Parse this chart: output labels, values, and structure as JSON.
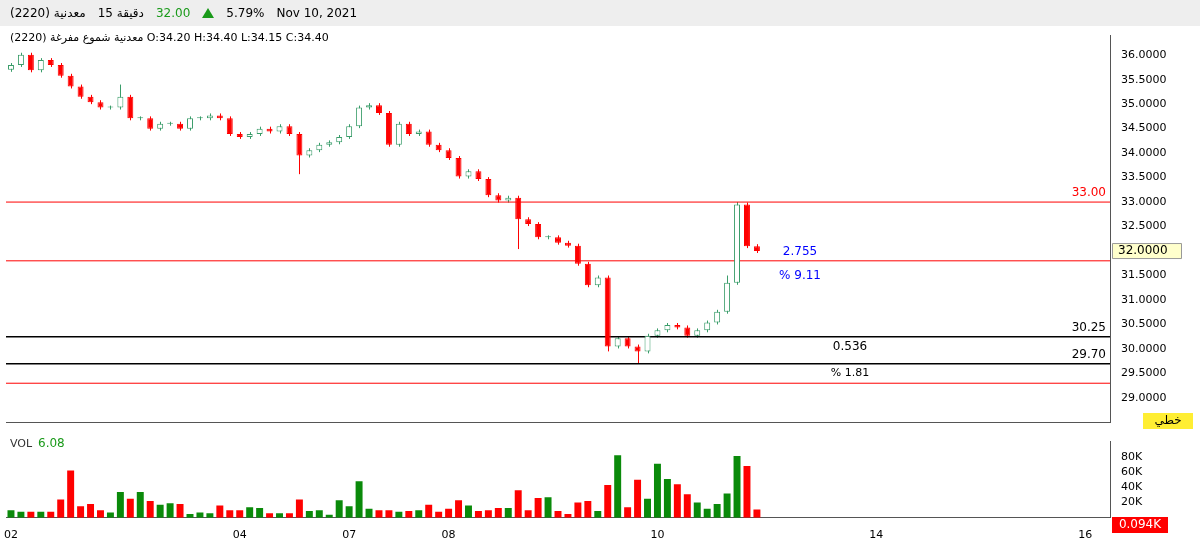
{
  "chart_data": [
    {
      "type": "candlestick",
      "title": "معدنية (2220)",
      "subtitle": "معدنية شموع مفرغة (2220) O:34.20 H:34.40 L:34.15 C:34.40",
      "categories": [
        "02",
        null,
        null,
        null,
        null,
        null,
        null,
        null,
        null,
        null,
        null,
        null,
        null,
        null,
        null,
        null,
        null,
        null,
        null,
        null,
        null,
        null,
        null,
        "04",
        null,
        null,
        null,
        null,
        null,
        null,
        null,
        null,
        null,
        null,
        "07",
        null,
        null,
        null,
        null,
        null,
        null,
        null,
        null,
        null,
        "08",
        null,
        null,
        null,
        null,
        null,
        null,
        null,
        null,
        null,
        null,
        null,
        null,
        null,
        null,
        null,
        null,
        null,
        null,
        null,
        null,
        "10",
        null,
        null,
        null,
        null,
        null,
        null,
        null,
        null,
        null,
        null,
        null,
        null,
        null,
        null,
        null,
        null,
        null,
        null,
        null,
        null,
        null,
        "14",
        null,
        null,
        null,
        null,
        null,
        null,
        null,
        null,
        null,
        null,
        null,
        null,
        null,
        null,
        null,
        null,
        null,
        null,
        null,
        null,
        "16",
        null,
        null
      ],
      "ohlc": [
        [
          35.7,
          35.84,
          35.66,
          35.8
        ],
        [
          35.8,
          36.05,
          35.76,
          36.01
        ],
        [
          36.01,
          36.05,
          35.65,
          35.69
        ],
        [
          35.69,
          35.94,
          35.65,
          35.9
        ],
        [
          35.9,
          35.94,
          35.76,
          35.8
        ],
        [
          35.8,
          35.84,
          35.54,
          35.58
        ],
        [
          35.58,
          35.62,
          35.32,
          35.36
        ],
        [
          35.36,
          35.4,
          35.11,
          35.15
        ],
        [
          35.15,
          35.19,
          35.0,
          35.04
        ],
        [
          35.04,
          35.08,
          34.89,
          34.93
        ],
        [
          34.93,
          34.97,
          34.89,
          34.93
        ],
        [
          34.93,
          35.4,
          34.89,
          35.15
        ],
        [
          35.15,
          35.19,
          34.67,
          34.71
        ],
        [
          34.71,
          34.75,
          34.67,
          34.71
        ],
        [
          34.71,
          34.75,
          34.46,
          34.5
        ],
        [
          34.5,
          34.64,
          34.46,
          34.6
        ],
        [
          34.6,
          34.64,
          34.56,
          34.6
        ],
        [
          34.6,
          34.64,
          34.46,
          34.5
        ],
        [
          34.5,
          34.75,
          34.46,
          34.71
        ],
        [
          34.71,
          34.75,
          34.67,
          34.71
        ],
        [
          34.71,
          34.81,
          34.67,
          34.77
        ],
        [
          34.77,
          34.81,
          34.67,
          34.71
        ],
        [
          34.71,
          34.75,
          34.35,
          34.39
        ],
        [
          34.39,
          34.43,
          34.29,
          34.33
        ],
        [
          34.33,
          34.43,
          34.29,
          34.39
        ],
        [
          34.39,
          34.54,
          34.35,
          34.5
        ],
        [
          34.5,
          34.54,
          34.4,
          34.44
        ],
        [
          34.44,
          34.59,
          34.4,
          34.55
        ],
        [
          34.55,
          34.59,
          34.35,
          34.39
        ],
        [
          34.39,
          34.43,
          33.57,
          33.95
        ],
        [
          33.95,
          34.1,
          33.91,
          34.06
        ],
        [
          34.06,
          34.21,
          34.02,
          34.17
        ],
        [
          34.17,
          34.26,
          34.13,
          34.22
        ],
        [
          34.22,
          34.37,
          34.18,
          34.33
        ],
        [
          34.33,
          34.59,
          34.29,
          34.55
        ],
        [
          34.55,
          34.97,
          34.51,
          34.93
        ],
        [
          34.93,
          35.02,
          34.89,
          34.98
        ],
        [
          34.98,
          35.02,
          34.78,
          34.82
        ],
        [
          34.82,
          34.86,
          34.13,
          34.17
        ],
        [
          34.17,
          34.64,
          34.13,
          34.6
        ],
        [
          34.6,
          34.64,
          34.35,
          34.39
        ],
        [
          34.39,
          34.48,
          34.35,
          34.44
        ],
        [
          34.44,
          34.48,
          34.13,
          34.17
        ],
        [
          34.17,
          34.21,
          34.02,
          34.06
        ],
        [
          34.06,
          34.1,
          33.86,
          33.9
        ],
        [
          33.9,
          33.94,
          33.48,
          33.52
        ],
        [
          33.52,
          33.67,
          33.48,
          33.63
        ],
        [
          33.63,
          33.67,
          33.43,
          33.47
        ],
        [
          33.47,
          33.51,
          33.1,
          33.14
        ],
        [
          33.14,
          33.18,
          32.99,
          33.03
        ],
        [
          33.03,
          33.13,
          32.99,
          33.09
        ],
        [
          33.09,
          33.13,
          32.04,
          32.65
        ],
        [
          32.65,
          32.69,
          32.51,
          32.55
        ],
        [
          32.55,
          32.59,
          32.24,
          32.28
        ],
        [
          32.28,
          32.32,
          32.24,
          32.28
        ],
        [
          32.28,
          32.32,
          32.13,
          32.17
        ],
        [
          32.17,
          32.21,
          32.07,
          32.11
        ],
        [
          32.11,
          32.15,
          31.7,
          31.74
        ],
        [
          31.74,
          31.78,
          31.26,
          31.3
        ],
        [
          31.3,
          31.5,
          31.26,
          31.46
        ],
        [
          31.46,
          31.5,
          29.95,
          30.05
        ],
        [
          30.05,
          30.26,
          30.01,
          30.22
        ],
        [
          30.22,
          30.26,
          30.01,
          30.05
        ],
        [
          30.05,
          30.09,
          29.7,
          29.95
        ],
        [
          29.95,
          30.31,
          29.91,
          30.27
        ],
        [
          30.27,
          30.42,
          30.23,
          30.38
        ],
        [
          30.38,
          30.53,
          30.34,
          30.49
        ],
        [
          30.49,
          30.53,
          30.4,
          30.44
        ],
        [
          30.44,
          30.48,
          30.23,
          30.27
        ],
        [
          30.27,
          30.42,
          30.23,
          30.38
        ],
        [
          30.38,
          30.58,
          30.34,
          30.54
        ],
        [
          30.54,
          30.8,
          30.5,
          30.76
        ],
        [
          30.76,
          31.5,
          30.72,
          31.35
        ],
        [
          31.35,
          33.0,
          31.31,
          32.95
        ],
        [
          32.95,
          32.99,
          32.06,
          32.1
        ],
        [
          32.1,
          32.14,
          31.96,
          32.0
        ],
        null,
        null,
        null,
        null,
        null,
        null,
        null,
        null,
        null,
        null,
        null,
        null,
        null,
        null,
        null,
        null,
        null,
        null,
        null,
        null,
        null,
        null,
        null,
        null,
        null,
        null,
        null,
        null,
        null,
        null,
        null,
        null,
        null,
        null,
        null
      ],
      "colors": [
        "#3a9d6a",
        "#3a9d6a",
        "#ff0000",
        "#3a9d6a",
        "#ff0000",
        "#ff0000",
        "#ff0000",
        "#ff0000",
        "#ff0000",
        "#ff0000",
        "#3a9d6a",
        "#3a9d6a",
        "#ff0000",
        "#3a9d6a",
        "#ff0000",
        "#3a9d6a",
        "#3a9d6a",
        "#ff0000",
        "#3a9d6a",
        "#3a9d6a",
        "#3a9d6a",
        "#ff0000",
        "#ff0000",
        "#ff0000",
        "#3a9d6a",
        "#3a9d6a",
        "#ff0000",
        "#3a9d6a",
        "#ff0000",
        "#ff0000",
        "#3a9d6a",
        "#3a9d6a",
        "#3a9d6a",
        "#3a9d6a",
        "#3a9d6a",
        "#3a9d6a",
        "#3a9d6a",
        "#ff0000",
        "#ff0000",
        "#3a9d6a",
        "#ff0000",
        "#3a9d6a",
        "#ff0000",
        "#ff0000",
        "#ff0000",
        "#ff0000",
        "#3a9d6a",
        "#ff0000",
        "#ff0000",
        "#ff0000",
        "#3a9d6a",
        "#ff0000",
        "#ff0000",
        "#ff0000",
        "#3a9d6a",
        "#ff0000",
        "#ff0000",
        "#ff0000",
        "#ff0000",
        "#3a9d6a",
        "#ff0000",
        "#3a9d6a",
        "#ff0000",
        "#ff0000",
        "#3a9d6a",
        "#3a9d6a",
        "#3a9d6a",
        "#ff0000",
        "#ff0000",
        "#3a9d6a",
        "#3a9d6a",
        "#3a9d6a",
        "#3a9d6a",
        "#3a9d6a",
        "#ff0000",
        "#ff0000",
        null,
        null,
        null,
        null,
        null,
        null,
        null,
        null,
        null,
        null,
        null,
        null,
        null,
        null,
        null,
        null,
        null,
        null,
        null,
        null,
        null,
        null,
        null,
        null,
        null,
        null,
        null,
        null,
        null,
        null,
        null,
        null,
        null,
        null,
        null
      ],
      "ylim": [
        28.5,
        36.4
      ],
      "yticks": [
        {
          "value": 29,
          "label": "29.0000"
        },
        {
          "value": 29.5,
          "label": "29.5000"
        },
        {
          "value": 30,
          "label": "30.0000"
        },
        {
          "value": 30.5,
          "label": "30.5000"
        },
        {
          "value": 31,
          "label": "31.0000"
        },
        {
          "value": 31.5,
          "label": "31.5000"
        },
        {
          "value": 32.5,
          "label": "32.5000"
        },
        {
          "value": 33,
          "label": "33.0000"
        },
        {
          "value": 33.5,
          "label": "33.5000"
        },
        {
          "value": 34,
          "label": "34.0000"
        },
        {
          "value": 34.5,
          "label": "34.5000"
        },
        {
          "value": 35,
          "label": "35.0000"
        },
        {
          "value": 35.5,
          "label": "35.5000"
        },
        {
          "value": 36,
          "label": "36.0000"
        }
      ],
      "tick_labels": "y",
      "ref_lines": [
        {
          "axis": "y",
          "value": 33.0,
          "label": "33.00",
          "color": "#ff0000"
        },
        {
          "axis": "y",
          "value": 31.8,
          "color": "#ff0000"
        },
        {
          "axis": "y",
          "value": 29.3,
          "color": "#ff0000"
        },
        {
          "axis": "y",
          "value": 30.25,
          "label": "30.25",
          "color": "#000000"
        },
        {
          "axis": "y",
          "value": 29.7,
          "label": "29.70",
          "color": "#000000"
        }
      ],
      "annotations": [
        "15 دقيقة",
        "32.00",
        "5.79%",
        "Nov 10, 2021",
        "2.755",
        "% 9.11",
        "0.536",
        "% 1.81",
        "32.0000",
        "خطي"
      ]
    },
    {
      "type": "bar",
      "title": "VOL",
      "categories": [
        "02",
        null,
        null,
        null,
        null,
        null,
        null,
        null,
        null,
        null,
        null,
        null,
        null,
        null,
        null,
        null,
        null,
        null,
        null,
        null,
        null,
        null,
        null,
        "04",
        null,
        null,
        null,
        null,
        null,
        null,
        null,
        null,
        null,
        null,
        "07",
        null,
        null,
        null,
        null,
        null,
        null,
        null,
        null,
        null,
        "08",
        null,
        null,
        null,
        null,
        null,
        null,
        null,
        null,
        null,
        null,
        null,
        null,
        null,
        null,
        null,
        null,
        null,
        null,
        null,
        null,
        "10",
        null,
        null,
        null,
        null,
        null,
        null,
        null,
        null,
        null,
        null,
        null,
        null,
        null,
        null,
        null,
        null,
        null,
        null,
        null,
        null,
        null,
        "14",
        null,
        null,
        null,
        null,
        null,
        null,
        null,
        null,
        null,
        null,
        null,
        null,
        null,
        null,
        null,
        null,
        null,
        null,
        null,
        null,
        "16",
        null,
        null
      ],
      "values": [
        10,
        8,
        8,
        8,
        8,
        24,
        62,
        15,
        18,
        10,
        7,
        34,
        25,
        34,
        22,
        17,
        19,
        18,
        5,
        7,
        6,
        16,
        10,
        10,
        14,
        13,
        6,
        6,
        6,
        24,
        9,
        10,
        4,
        23,
        15,
        48,
        12,
        10,
        10,
        8,
        9,
        10,
        17,
        8,
        12,
        23,
        16,
        9,
        10,
        13,
        13,
        36,
        10,
        26,
        27,
        9,
        5,
        20,
        22,
        9,
        43,
        82,
        14,
        50,
        25,
        71,
        51,
        44,
        31,
        20,
        12,
        18,
        32,
        81,
        68,
        11,
        null,
        null,
        null,
        null,
        null,
        null,
        null,
        null,
        null,
        null,
        null,
        null,
        null,
        null,
        null,
        null,
        null,
        null,
        null,
        null,
        null,
        null,
        null,
        null,
        null,
        null,
        null,
        null,
        null,
        null,
        null,
        null,
        null,
        null,
        null
      ],
      "colors": [
        "#0a8a0a",
        "#0a8a0a",
        "#ff0000",
        "#0a8a0a",
        "#ff0000",
        "#ff0000",
        "#ff0000",
        "#ff0000",
        "#ff0000",
        "#ff0000",
        "#0a8a0a",
        "#0a8a0a",
        "#ff0000",
        "#0a8a0a",
        "#ff0000",
        "#0a8a0a",
        "#0a8a0a",
        "#ff0000",
        "#0a8a0a",
        "#0a8a0a",
        "#0a8a0a",
        "#ff0000",
        "#ff0000",
        "#ff0000",
        "#0a8a0a",
        "#0a8a0a",
        "#ff0000",
        "#0a8a0a",
        "#ff0000",
        "#ff0000",
        "#0a8a0a",
        "#0a8a0a",
        "#0a8a0a",
        "#0a8a0a",
        "#0a8a0a",
        "#0a8a0a",
        "#0a8a0a",
        "#ff0000",
        "#ff0000",
        "#0a8a0a",
        "#ff0000",
        "#0a8a0a",
        "#ff0000",
        "#ff0000",
        "#ff0000",
        "#ff0000",
        "#0a8a0a",
        "#ff0000",
        "#ff0000",
        "#ff0000",
        "#0a8a0a",
        "#ff0000",
        "#ff0000",
        "#ff0000",
        "#0a8a0a",
        "#ff0000",
        "#ff0000",
        "#ff0000",
        "#ff0000",
        "#0a8a0a",
        "#ff0000",
        "#0a8a0a",
        "#ff0000",
        "#ff0000",
        "#0a8a0a",
        "#0a8a0a",
        "#0a8a0a",
        "#ff0000",
        "#ff0000",
        "#0a8a0a",
        "#0a8a0a",
        "#0a8a0a",
        "#0a8a0a",
        "#0a8a0a",
        "#ff0000",
        "#ff0000",
        null,
        null,
        null,
        null,
        null,
        null,
        null,
        null,
        null,
        null,
        null,
        null,
        null,
        null,
        null,
        null,
        null,
        null,
        null,
        null,
        null,
        null,
        null,
        null,
        null,
        null,
        null,
        null,
        null,
        null,
        null,
        null,
        null,
        null,
        null
      ],
      "ylim": [
        0,
        100
      ],
      "yticks": [
        {
          "value": 20,
          "label": "20K"
        },
        {
          "value": 40,
          "label": "40K"
        },
        {
          "value": 60,
          "label": "60K"
        },
        {
          "value": 80,
          "label": "80K"
        }
      ],
      "annotations": [
        "6.08",
        "0.094K"
      ]
    }
  ]
}
